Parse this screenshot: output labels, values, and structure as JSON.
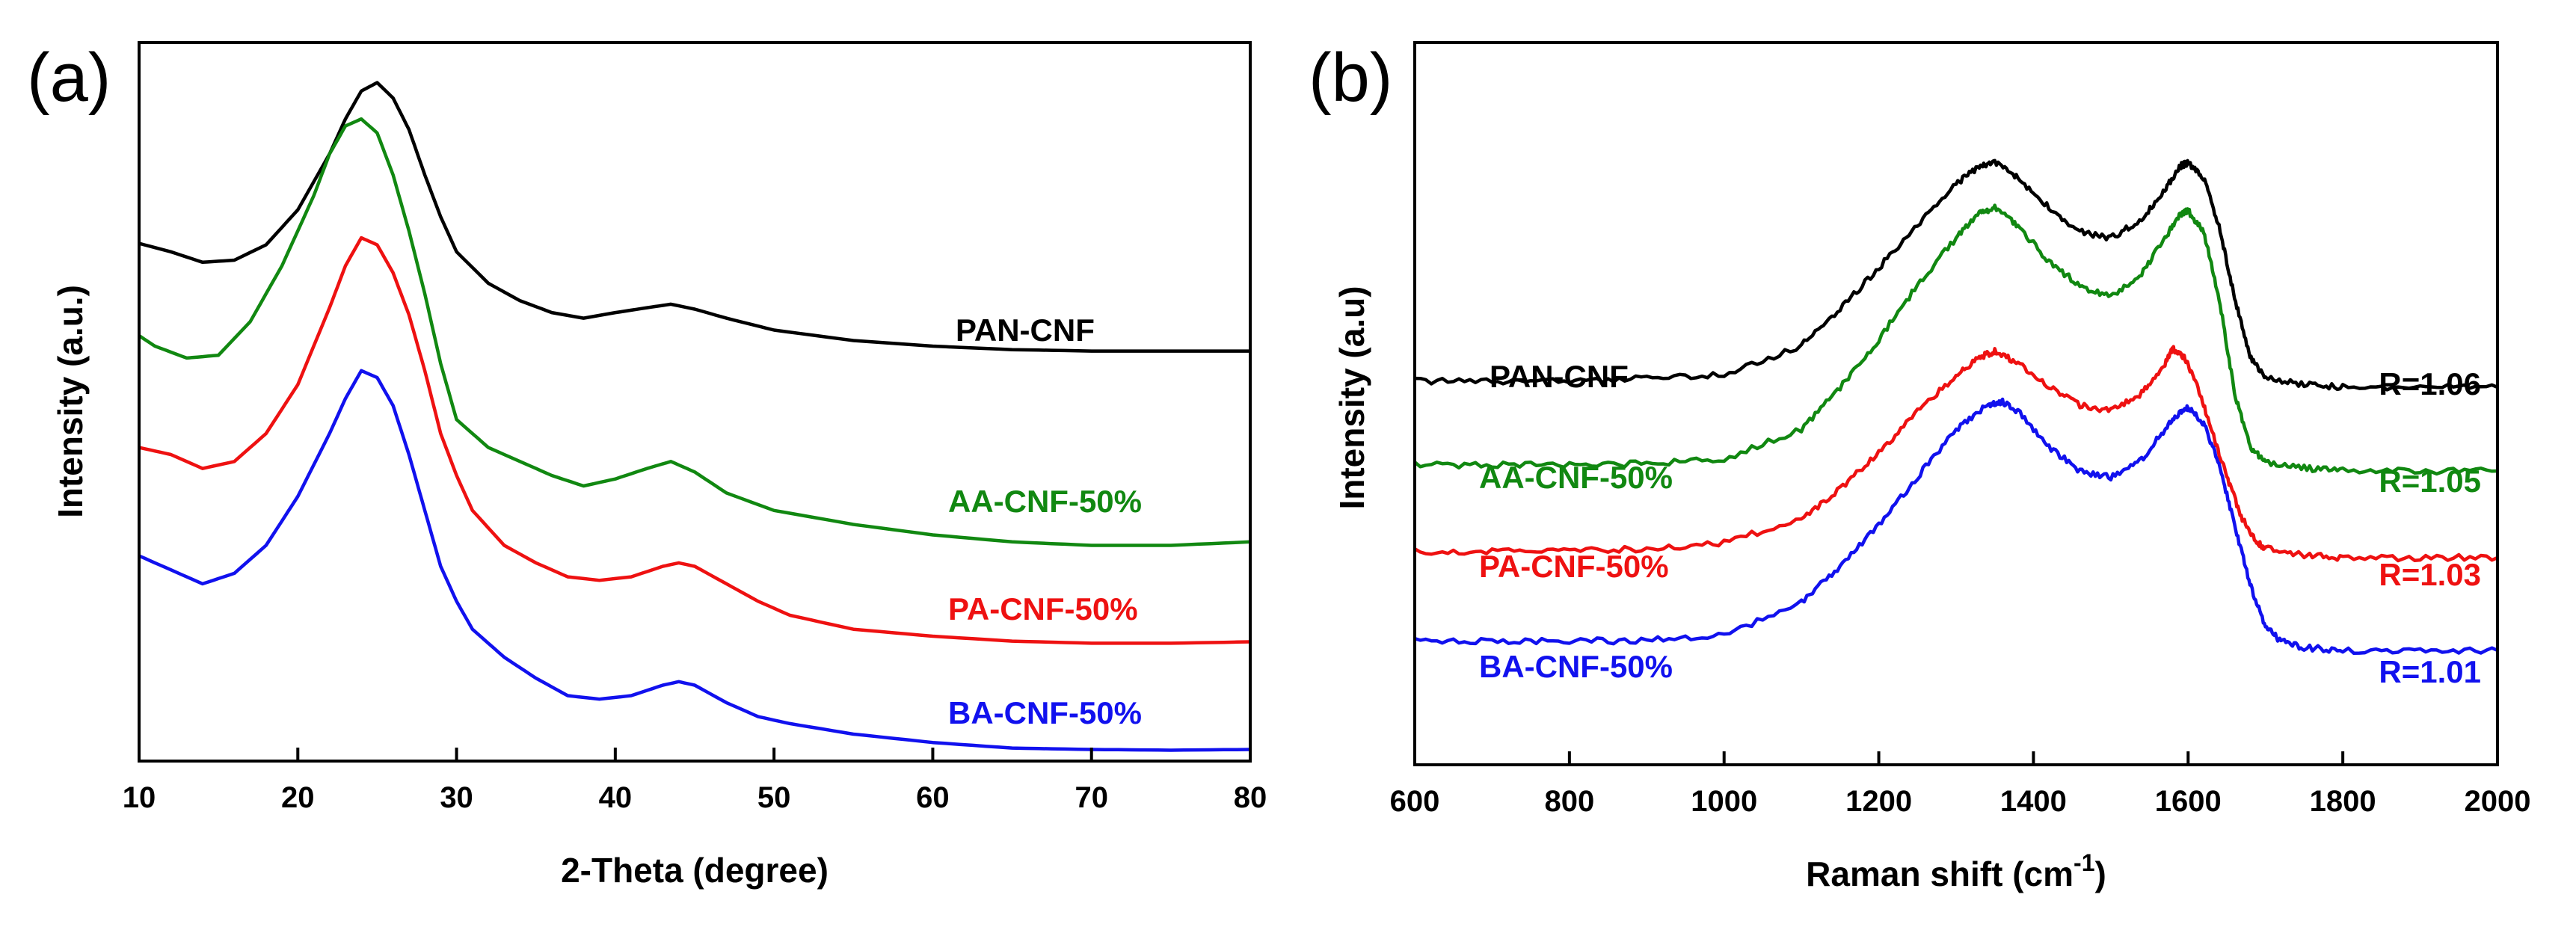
{
  "chart_data": [
    {
      "panel_label": "(a)",
      "type": "line",
      "xlabel": "2-Theta (degree)",
      "ylabel": "Intensity (a.u.)",
      "xlim": [
        10,
        80
      ],
      "ylim": [
        0,
        1
      ],
      "xticks": [
        10,
        20,
        30,
        40,
        50,
        60,
        70,
        80
      ],
      "yticks_shown": false,
      "series": [
        {
          "name": "PAN-CNF",
          "label": "PAN-CNF",
          "color": "#000000",
          "x": [
            10,
            12,
            14,
            16,
            18,
            20,
            22,
            23,
            24,
            25,
            26,
            27,
            28,
            29,
            30,
            32,
            34,
            36,
            38,
            40,
            42,
            43.5,
            45,
            47,
            50,
            55,
            60,
            65,
            70,
            75,
            80
          ],
          "y": [
            0.732,
            0.72,
            0.705,
            0.708,
            0.73,
            0.78,
            0.86,
            0.91,
            0.95,
            0.962,
            0.94,
            0.895,
            0.83,
            0.77,
            0.72,
            0.675,
            0.65,
            0.633,
            0.625,
            0.633,
            0.64,
            0.645,
            0.638,
            0.625,
            0.608,
            0.593,
            0.585,
            0.58,
            0.578,
            0.578,
            0.578
          ]
        },
        {
          "name": "AA-CNF-50%",
          "label": "AA-CNF-50%",
          "color": "#118811",
          "x": [
            10,
            11,
            13,
            15,
            17,
            19,
            21,
            22,
            23,
            24,
            25,
            26,
            27,
            28,
            29,
            30,
            32,
            34,
            36,
            38,
            40,
            42,
            43.5,
            45,
            47,
            50,
            55,
            60,
            65,
            70,
            75,
            80
          ],
          "y": [
            0.6,
            0.585,
            0.568,
            0.572,
            0.62,
            0.7,
            0.8,
            0.86,
            0.9,
            0.91,
            0.89,
            0.83,
            0.75,
            0.66,
            0.56,
            0.48,
            0.44,
            0.42,
            0.4,
            0.385,
            0.395,
            0.41,
            0.42,
            0.405,
            0.375,
            0.35,
            0.33,
            0.315,
            0.305,
            0.3,
            0.3,
            0.305
          ]
        },
        {
          "name": "PA-CNF-50%",
          "label": "PA-CNF-50%",
          "color": "#ee1111",
          "x": [
            10,
            12,
            14,
            16,
            18,
            20,
            22,
            23,
            24,
            25,
            26,
            27,
            28,
            29,
            30,
            31,
            33,
            35,
            37,
            39,
            41,
            43,
            44,
            45,
            47,
            49,
            51,
            55,
            60,
            65,
            70,
            75,
            80
          ],
          "y": [
            0.44,
            0.43,
            0.41,
            0.42,
            0.46,
            0.53,
            0.64,
            0.7,
            0.74,
            0.73,
            0.69,
            0.63,
            0.55,
            0.46,
            0.4,
            0.35,
            0.3,
            0.275,
            0.255,
            0.25,
            0.255,
            0.27,
            0.275,
            0.27,
            0.245,
            0.22,
            0.2,
            0.18,
            0.17,
            0.163,
            0.16,
            0.16,
            0.162
          ]
        },
        {
          "name": "BA-CNF-50%",
          "label": "BA-CNF-50%",
          "color": "#1111ee",
          "x": [
            10,
            12,
            14,
            16,
            18,
            20,
            22,
            23,
            24,
            25,
            26,
            27,
            28,
            29,
            30,
            31,
            33,
            35,
            37,
            39,
            41,
            43,
            44,
            45,
            47,
            49,
            51,
            55,
            60,
            65,
            70,
            75,
            80
          ],
          "y": [
            0.285,
            0.265,
            0.245,
            0.26,
            0.3,
            0.37,
            0.46,
            0.51,
            0.55,
            0.54,
            0.5,
            0.43,
            0.35,
            0.27,
            0.22,
            0.18,
            0.14,
            0.11,
            0.085,
            0.08,
            0.085,
            0.1,
            0.105,
            0.1,
            0.075,
            0.055,
            0.045,
            0.03,
            0.018,
            0.01,
            0.008,
            0.007,
            0.008
          ]
        }
      ]
    },
    {
      "panel_label": "(b)",
      "type": "line",
      "xlabel": "Raman shift (cm",
      "xlabel_superscript": "-1",
      "xlabel_suffix": ")",
      "ylabel": "Intensity (a.u)",
      "xlim": [
        600,
        2000
      ],
      "ylim": [
        0,
        1
      ],
      "xticks": [
        600,
        800,
        1000,
        1200,
        1400,
        1600,
        1800,
        2000
      ],
      "yticks_shown": false,
      "series": [
        {
          "name": "PAN-CNF",
          "label": "PAN-CNF",
          "ratio_label": "R=1.06",
          "color": "#000000",
          "x": [
            600,
            700,
            800,
            900,
            1000,
            1100,
            1150,
            1200,
            1250,
            1300,
            1330,
            1350,
            1380,
            1420,
            1460,
            1500,
            1540,
            1570,
            1590,
            1600,
            1620,
            1640,
            1660,
            1680,
            1700,
            1750,
            1800,
            1900,
            2000
          ],
          "y": [
            0.6,
            0.6,
            0.6,
            0.605,
            0.61,
            0.66,
            0.72,
            0.79,
            0.86,
            0.93,
            0.96,
            0.965,
            0.94,
            0.89,
            0.85,
            0.84,
            0.87,
            0.92,
            0.96,
            0.965,
            0.94,
            0.86,
            0.74,
            0.64,
            0.605,
            0.595,
            0.59,
            0.59,
            0.59
          ]
        },
        {
          "name": "AA-CNF-50%",
          "label": "AA-CNF-50%",
          "ratio_label": "R=1.05",
          "color": "#118811",
          "x": [
            600,
            700,
            800,
            900,
            1000,
            1100,
            1150,
            1200,
            1250,
            1300,
            1330,
            1350,
            1380,
            1420,
            1460,
            1500,
            1540,
            1570,
            1590,
            1600,
            1620,
            1640,
            1660,
            1680,
            1700,
            1750,
            1800,
            1900,
            2000
          ],
          "y": [
            0.46,
            0.46,
            0.46,
            0.462,
            0.47,
            0.52,
            0.59,
            0.67,
            0.76,
            0.84,
            0.88,
            0.89,
            0.86,
            0.8,
            0.76,
            0.74,
            0.78,
            0.84,
            0.88,
            0.885,
            0.85,
            0.74,
            0.58,
            0.49,
            0.465,
            0.455,
            0.45,
            0.45,
            0.45
          ]
        },
        {
          "name": "PA-CNF-50%",
          "label": "PA-CNF-50%",
          "ratio_label": "R=1.03",
          "color": "#ee1111",
          "x": [
            600,
            700,
            800,
            900,
            1000,
            1100,
            1150,
            1200,
            1250,
            1300,
            1330,
            1350,
            1380,
            1420,
            1460,
            1500,
            1540,
            1570,
            1580,
            1595,
            1610,
            1630,
            1650,
            1670,
            1690,
            1700,
            1750,
            1800,
            1900,
            2000
          ],
          "y": [
            0.315,
            0.315,
            0.318,
            0.32,
            0.33,
            0.37,
            0.42,
            0.48,
            0.55,
            0.61,
            0.64,
            0.65,
            0.63,
            0.59,
            0.56,
            0.55,
            0.58,
            0.63,
            0.655,
            0.64,
            0.6,
            0.52,
            0.44,
            0.37,
            0.33,
            0.32,
            0.31,
            0.305,
            0.305,
            0.305
          ]
        },
        {
          "name": "BA-CNF-50%",
          "label": "BA-CNF-50%",
          "ratio_label": "R=1.01",
          "color": "#1111ee",
          "x": [
            600,
            700,
            800,
            900,
            1000,
            1100,
            1150,
            1200,
            1250,
            1300,
            1340,
            1360,
            1380,
            1420,
            1460,
            1500,
            1540,
            1570,
            1590,
            1600,
            1620,
            1640,
            1660,
            1680,
            1700,
            1720,
            1750,
            1800,
            1900,
            2000
          ],
          "y": [
            0.165,
            0.165,
            0.165,
            0.167,
            0.175,
            0.23,
            0.29,
            0.36,
            0.44,
            0.52,
            0.56,
            0.565,
            0.55,
            0.49,
            0.45,
            0.44,
            0.47,
            0.52,
            0.55,
            0.555,
            0.53,
            0.46,
            0.36,
            0.26,
            0.19,
            0.165,
            0.155,
            0.15,
            0.15,
            0.15
          ]
        }
      ]
    }
  ]
}
